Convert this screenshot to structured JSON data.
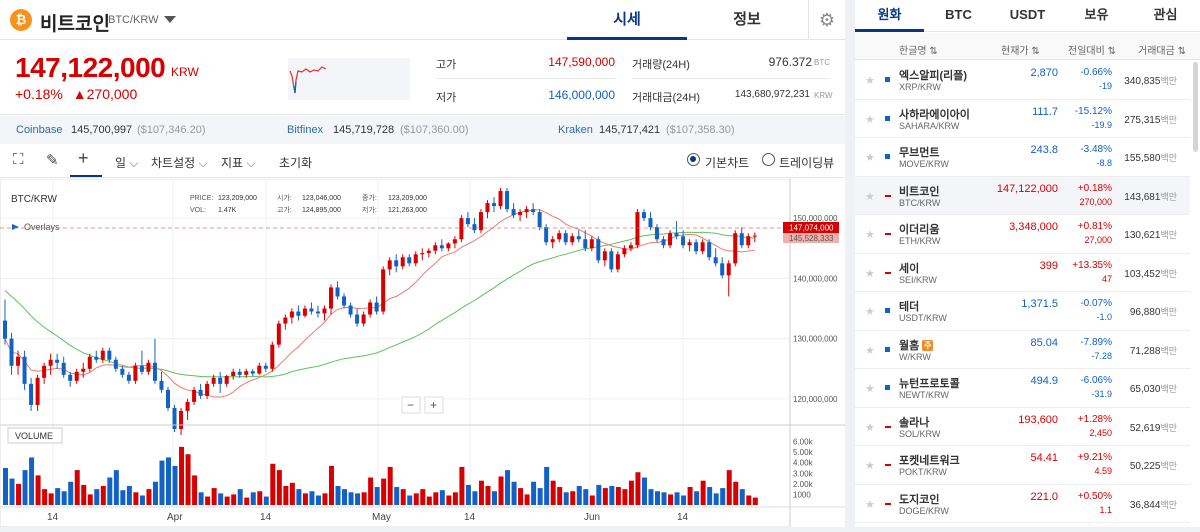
{
  "header": {
    "coin_symbol": "₿",
    "coin_name": "비트코인",
    "pair": "BTC/KRW",
    "tabs": [
      "시세",
      "정보"
    ]
  },
  "price": {
    "current": "147,122,000",
    "unit": "KRW",
    "change_rate": "+0.18%",
    "change_amount": "▲270,000",
    "high_label": "고가",
    "high": "147,590,000",
    "low_label": "저가",
    "low": "146,000,000",
    "volume_label": "거래량(24H)",
    "volume": "976.372",
    "volume_unit": "BTC",
    "turnover_label": "거래대금(24H)",
    "turnover": "143,680,972,231",
    "turnover_unit": "KRW"
  },
  "exchanges": [
    {
      "name": "Coinbase",
      "price": "145,700,997",
      "usd": "($107,346.20)"
    },
    {
      "name": "Bitfinex",
      "price": "145,719,728",
      "usd": "($107,360.00)"
    },
    {
      "name": "Kraken",
      "price": "145,717,421",
      "usd": "($107,358.30)"
    }
  ],
  "toolbar": {
    "period": "일",
    "chart_settings": "차트설정",
    "indicators": "지표",
    "reset": "초기화",
    "basic_chart": "기본차트",
    "tradingview": "트레이딩뷰"
  },
  "chart": {
    "symbol": "BTC/KRW",
    "overlays": "Overlays",
    "ohlc": {
      "price_label": "PRICE:",
      "price": "123,209,000",
      "vol_label": "VOL:",
      "vol": "1.47K",
      "open_label": "시가:",
      "open": "123,046,000",
      "high_label": "고가:",
      "high": "124,895,000",
      "close_label": "종가:",
      "close": "123,209,000",
      "low_label": "저가:",
      "low": "121,263,000"
    },
    "current_tag": "147,074,000",
    "ma_tag": "145,528,333",
    "volume_label": "VOLUME",
    "zoom_out": "−",
    "zoom_in": "+"
  },
  "chart_data": {
    "type": "candlestick",
    "price_axis": [
      "150,000,000",
      "140,000,000",
      "130,000,000",
      "120,000,000"
    ],
    "price_axis_values": [
      150000000,
      140000000,
      130000000,
      120000000
    ],
    "volume_axis": [
      "6.00k",
      "5.00k",
      "4.00k",
      "3.00k",
      "2.00k",
      "1000"
    ],
    "volume_axis_values": [
      6000,
      5000,
      4000,
      3000,
      2000,
      1000
    ],
    "date_axis": [
      "14",
      "Apr",
      "14",
      "May",
      "14",
      "Jun",
      "14"
    ],
    "ylim": [
      116000000,
      156000000
    ],
    "volume_ylim": [
      0,
      7000
    ],
    "current_price": 147074000,
    "ma_value": 145528333,
    "series": [
      {
        "name": "candles",
        "values": [
          [
            133,
            136.5,
            129,
            130
          ],
          [
            130,
            131,
            124,
            125.5
          ],
          [
            125.5,
            128,
            124,
            127
          ],
          [
            127,
            128,
            121.5,
            122.5
          ],
          [
            122.5,
            123.5,
            118,
            119
          ],
          [
            119,
            124,
            118,
            123.5
          ],
          [
            123.5,
            126,
            122.5,
            125.5
          ],
          [
            125.5,
            127.5,
            124,
            126.5
          ],
          [
            126.5,
            127.5,
            125,
            126
          ],
          [
            126,
            127,
            123.5,
            124
          ],
          [
            124,
            124.5,
            122,
            123
          ],
          [
            123,
            125,
            122.5,
            124.5
          ],
          [
            124.5,
            126,
            123.5,
            125
          ],
          [
            125,
            127.5,
            124.5,
            127
          ],
          [
            127,
            128,
            126,
            126.5
          ],
          [
            126.5,
            128.5,
            126,
            128
          ],
          [
            128,
            128.5,
            126,
            126.5
          ],
          [
            126.5,
            127,
            124.5,
            125
          ],
          [
            125,
            125.5,
            123.5,
            124
          ],
          [
            124,
            124.5,
            122.5,
            123
          ],
          [
            123,
            126,
            122.5,
            125.5
          ],
          [
            125.5,
            128,
            124,
            124.5
          ],
          [
            124.5,
            126.5,
            124,
            126
          ],
          [
            126,
            130,
            122.5,
            123
          ],
          [
            123,
            124.5,
            121,
            121.5
          ],
          [
            121.5,
            122,
            118,
            118.5
          ],
          [
            118.5,
            119,
            114.5,
            115
          ],
          [
            115,
            118.5,
            114,
            118
          ],
          [
            118,
            120,
            116.5,
            119.5
          ],
          [
            119.5,
            122,
            119,
            121.5
          ],
          [
            121.5,
            122.5,
            120,
            120.5
          ],
          [
            120.5,
            123,
            120,
            122.5
          ],
          [
            122.5,
            124,
            122,
            123.5
          ],
          [
            123.5,
            124.5,
            121,
            122.5
          ],
          [
            122.5,
            124,
            122,
            123.8
          ],
          [
            123.8,
            125,
            123.2,
            124.5
          ],
          [
            124.5,
            125,
            123.5,
            124
          ],
          [
            124,
            125,
            123.5,
            124.6
          ],
          [
            124.6,
            125,
            123.8,
            124.2
          ],
          [
            124.2,
            126,
            124,
            125.5
          ],
          [
            125.5,
            126,
            124.5,
            125
          ],
          [
            125,
            129.5,
            124.5,
            129
          ],
          [
            129,
            133,
            128.5,
            132.5
          ],
          [
            132.5,
            134,
            131.5,
            133.5
          ],
          [
            133.5,
            135,
            132.5,
            134.5
          ],
          [
            134.5,
            135.5,
            133,
            133.8
          ],
          [
            133.8,
            135.5,
            133.5,
            135
          ],
          [
            135,
            136,
            134,
            134.5
          ],
          [
            134.5,
            135.5,
            133.5,
            134.2
          ],
          [
            134.2,
            135.5,
            133,
            135
          ],
          [
            135,
            139,
            134,
            138.5
          ],
          [
            138.5,
            139.5,
            136.5,
            137
          ],
          [
            137,
            137.5,
            135,
            135.5
          ],
          [
            135.5,
            136,
            133.5,
            134
          ],
          [
            134,
            135,
            132,
            132.5
          ],
          [
            132.5,
            134.5,
            132,
            134
          ],
          [
            134,
            136.5,
            133.5,
            136
          ],
          [
            136,
            137,
            134,
            134.5
          ],
          [
            134.5,
            142,
            134,
            141.5
          ],
          [
            141.5,
            143.5,
            140.5,
            143
          ],
          [
            143,
            144,
            141,
            142
          ],
          [
            142,
            144,
            141.5,
            143.5
          ],
          [
            143.5,
            144,
            142,
            142.5
          ],
          [
            142.5,
            144.5,
            142,
            144
          ],
          [
            144,
            145,
            143,
            144.2
          ],
          [
            144.2,
            145,
            143.5,
            144.6
          ],
          [
            144.6,
            146,
            144,
            145.5
          ],
          [
            145.5,
            146.5,
            144.5,
            145
          ],
          [
            145,
            146,
            144.5,
            145.8
          ],
          [
            145.8,
            147,
            145,
            146.5
          ],
          [
            146.5,
            150.5,
            146,
            150
          ],
          [
            150,
            151,
            148.5,
            149
          ],
          [
            149,
            150,
            147.5,
            148
          ],
          [
            148,
            151.5,
            147.5,
            151
          ],
          [
            151,
            153,
            150,
            152.5
          ],
          [
            152.5,
            153.5,
            151,
            152
          ],
          [
            152,
            155,
            151.5,
            154.5
          ],
          [
            154.5,
            155,
            151,
            151.5
          ],
          [
            151.5,
            152.5,
            150,
            150.5
          ],
          [
            150.5,
            151.5,
            149.5,
            151
          ],
          [
            151,
            152,
            150,
            151.5
          ],
          [
            151.5,
            152.5,
            150.5,
            151
          ],
          [
            151,
            151.5,
            148,
            148.5
          ],
          [
            148.5,
            149,
            145.5,
            146
          ],
          [
            146,
            147,
            145,
            146.5
          ],
          [
            146.5,
            148,
            146,
            147.5
          ],
          [
            147.5,
            148,
            145.5,
            146
          ],
          [
            146,
            147.5,
            145.5,
            147
          ],
          [
            147,
            148,
            146,
            146.5
          ],
          [
            146.5,
            148,
            144.5,
            145
          ],
          [
            145,
            147,
            144.5,
            146.5
          ],
          [
            146.5,
            147,
            142.5,
            143
          ],
          [
            143,
            145,
            142,
            144.5
          ],
          [
            144.5,
            145,
            141,
            141.5
          ],
          [
            141.5,
            144.5,
            141,
            144
          ],
          [
            144,
            145.5,
            143.5,
            145
          ],
          [
            145,
            146,
            144.5,
            145.5
          ],
          [
            145.5,
            151.5,
            145,
            151
          ],
          [
            151,
            151.5,
            149.5,
            150
          ],
          [
            150,
            151,
            148,
            148.5
          ],
          [
            148.5,
            149,
            146,
            146.5
          ],
          [
            146.5,
            147,
            145,
            145.5
          ],
          [
            145.5,
            148,
            145,
            147.5
          ],
          [
            147.5,
            149.5,
            146.5,
            147
          ],
          [
            147,
            148,
            145,
            145.5
          ],
          [
            145.5,
            146.5,
            144.5,
            146
          ],
          [
            146,
            146.5,
            144,
            144.5
          ],
          [
            144.5,
            146.5,
            144,
            146
          ],
          [
            146,
            146.5,
            143,
            143.5
          ],
          [
            143.5,
            145,
            142,
            142.5
          ],
          [
            142.5,
            143.5,
            140,
            140.5
          ],
          [
            140.5,
            143,
            137,
            142.5
          ],
          [
            142.5,
            148,
            142,
            147.5
          ],
          [
            147.5,
            148.5,
            145,
            145.5
          ],
          [
            145.5,
            147.5,
            145,
            147
          ],
          [
            147,
            147.6,
            146,
            147.1
          ]
        ]
      },
      {
        "name": "volume",
        "values": [
          3500,
          2500,
          2000,
          3300,
          4500,
          2800,
          1500,
          1100,
          1600,
          1300,
          2200,
          3300,
          1900,
          1000,
          1500,
          1800,
          2600,
          3300,
          1400,
          1800,
          1200,
          900,
          1500,
          2200,
          4200,
          4500,
          3700,
          5500,
          4800,
          2800,
          1200,
          800,
          1600,
          1100,
          800,
          1000,
          1500,
          700,
          1200,
          1300,
          800,
          3900,
          3300,
          1800,
          2100,
          1500,
          1100,
          1300,
          900,
          1100,
          3700,
          1800,
          1500,
          1200,
          1100,
          1200,
          2600,
          1700,
          2500,
          3600,
          1700,
          1500,
          900,
          1100,
          1500,
          800,
          1200,
          1400,
          900,
          1200,
          3600,
          1900,
          1300,
          2300,
          1800,
          1300,
          2700,
          3300,
          2200,
          1600,
          1000,
          2200,
          1600,
          3600,
          2300,
          1700,
          1200,
          1300,
          1800,
          1500,
          900,
          1900,
          1600,
          1800,
          1700,
          1500,
          2300,
          3100,
          2600,
          1500,
          1300,
          1200,
          1000,
          1200,
          900,
          1700,
          1300,
          2300,
          1700,
          1100,
          1600,
          3300,
          2200,
          1500,
          900,
          700
        ]
      }
    ]
  },
  "market": {
    "tabs": [
      "원화",
      "BTC",
      "USDT",
      "보유",
      "관심"
    ],
    "columns": {
      "name": "한글명 ⇅",
      "price": "현재가 ⇅",
      "change": "전일대비 ⇅",
      "volume": "거래대금 ⇅"
    },
    "volume_unit": "백만",
    "rows": [
      {
        "name": "엑스알피(리플)",
        "pair": "XRP/KRW",
        "price": "2,870",
        "rate": "-0.66%",
        "diff": "-19",
        "volume": "340,835",
        "dir": "down"
      },
      {
        "name": "사하라에이아이",
        "pair": "SAHARA/KRW",
        "price": "111.7",
        "rate": "-15.12%",
        "diff": "-19.9",
        "volume": "275,315",
        "dir": "down"
      },
      {
        "name": "무브먼트",
        "pair": "MOVE/KRW",
        "price": "243.8",
        "rate": "-3.48%",
        "diff": "-8.8",
        "volume": "155,580",
        "dir": "down"
      },
      {
        "name": "비트코인",
        "pair": "BTC/KRW",
        "price": "147,122,000",
        "rate": "+0.18%",
        "diff": "270,000",
        "volume": "143,681",
        "dir": "up"
      },
      {
        "name": "이더리움",
        "pair": "ETH/KRW",
        "price": "3,348,000",
        "rate": "+0.81%",
        "diff": "27,000",
        "volume": "130,621",
        "dir": "up"
      },
      {
        "name": "세이",
        "pair": "SEI/KRW",
        "price": "399",
        "rate": "+13.35%",
        "diff": "47",
        "volume": "103,452",
        "dir": "up"
      },
      {
        "name": "테더",
        "pair": "USDT/KRW",
        "price": "1,371.5",
        "rate": "-0.07%",
        "diff": "-1.0",
        "volume": "96,880",
        "dir": "down"
      },
      {
        "name": "월홈",
        "pair": "W/KRW",
        "price": "85.04",
        "rate": "-7.89%",
        "diff": "-7.28",
        "volume": "71,288",
        "dir": "down",
        "badge": "주"
      },
      {
        "name": "뉴턴프로토콜",
        "pair": "NEWT/KRW",
        "price": "494.9",
        "rate": "-6.06%",
        "diff": "-31.9",
        "volume": "65,030",
        "dir": "down"
      },
      {
        "name": "솔라나",
        "pair": "SOL/KRW",
        "price": "193,600",
        "rate": "+1.28%",
        "diff": "2,450",
        "volume": "52,619",
        "dir": "up"
      },
      {
        "name": "포켓네트워크",
        "pair": "POKT/KRW",
        "price": "54.41",
        "rate": "+9.21%",
        "diff": "4.59",
        "volume": "50,225",
        "dir": "up"
      },
      {
        "name": "도지코인",
        "pair": "DOGE/KRW",
        "price": "221.0",
        "rate": "+0.50%",
        "diff": "1.1",
        "volume": "36,844",
        "dir": "up"
      }
    ]
  },
  "colors": {
    "up": "#d60000",
    "down": "#1261c4",
    "accent": "#093687",
    "ma_short": "#f07a70",
    "ma_long": "#5cc35c"
  }
}
